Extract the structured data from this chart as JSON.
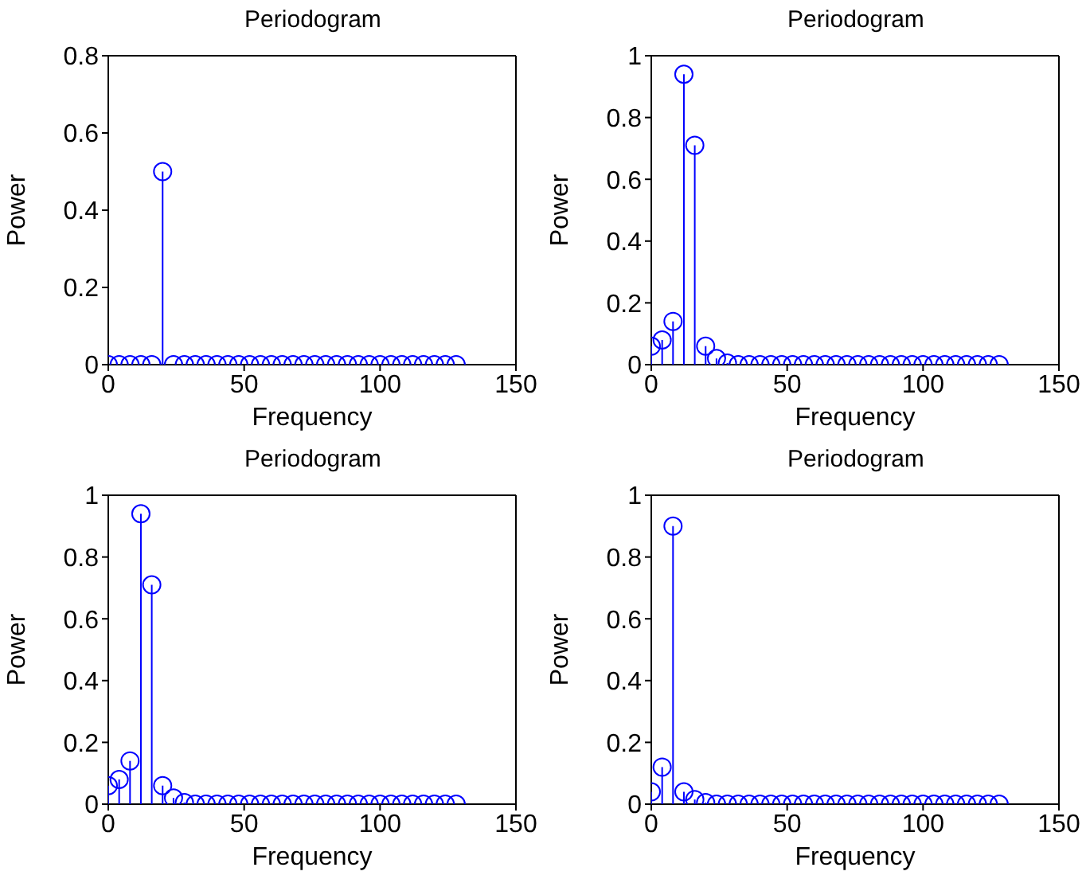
{
  "chart_data": [
    {
      "type": "lollipop",
      "title": "Periodogram",
      "xlabel": "Frequency",
      "ylabel": "Power",
      "x": [
        0,
        4,
        8,
        12,
        16,
        20,
        24,
        28,
        32,
        36,
        40,
        44,
        48,
        52,
        56,
        60,
        64,
        68,
        72,
        76,
        80,
        84,
        88,
        92,
        96,
        100,
        104,
        108,
        112,
        116,
        120,
        124,
        128
      ],
      "series": [
        {
          "color": "#0000ff",
          "values": [
            0,
            0,
            0,
            0,
            0,
            0.5,
            0,
            0,
            0,
            0,
            0,
            0,
            0,
            0,
            0,
            0,
            0,
            0,
            0,
            0,
            0,
            0,
            0,
            0,
            0,
            0,
            0,
            0,
            0,
            0,
            0,
            0,
            0
          ]
        }
      ],
      "xlim": [
        0,
        150
      ],
      "xticks": [
        0,
        50,
        100,
        150
      ],
      "ylim": [
        0,
        0.8
      ],
      "yticks": [
        0,
        0.2,
        0.4,
        0.6,
        0.8
      ],
      "grid": false,
      "marker": "circle"
    },
    {
      "type": "lollipop",
      "title": "Periodogram",
      "xlabel": "Frequency",
      "ylabel": "Power",
      "x": [
        0,
        4,
        8,
        12,
        16,
        20,
        24,
        28,
        32,
        36,
        40,
        44,
        48,
        52,
        56,
        60,
        64,
        68,
        72,
        76,
        80,
        84,
        88,
        92,
        96,
        100,
        104,
        108,
        112,
        116,
        120,
        124,
        128
      ],
      "series": [
        {
          "color": "#0000ff",
          "values": [
            0.06,
            0.08,
            0.14,
            0.94,
            0.71,
            0.06,
            0.02,
            0.005,
            0,
            0,
            0,
            0,
            0,
            0,
            0,
            0,
            0,
            0,
            0,
            0,
            0,
            0,
            0,
            0,
            0,
            0,
            0,
            0,
            0,
            0,
            0,
            0,
            0
          ]
        }
      ],
      "xlim": [
        0,
        150
      ],
      "xticks": [
        0,
        50,
        100,
        150
      ],
      "ylim": [
        0,
        1
      ],
      "yticks": [
        0,
        0.2,
        0.4,
        0.6,
        0.8,
        1
      ],
      "grid": false,
      "marker": "circle"
    },
    {
      "type": "lollipop",
      "title": "Periodogram",
      "xlabel": "Frequency",
      "ylabel": "Power",
      "x": [
        0,
        4,
        8,
        12,
        16,
        20,
        24,
        28,
        32,
        36,
        40,
        44,
        48,
        52,
        56,
        60,
        64,
        68,
        72,
        76,
        80,
        84,
        88,
        92,
        96,
        100,
        104,
        108,
        112,
        116,
        120,
        124,
        128
      ],
      "series": [
        {
          "color": "#0000ff",
          "values": [
            0.06,
            0.08,
            0.14,
            0.94,
            0.71,
            0.06,
            0.02,
            0.005,
            0,
            0,
            0,
            0,
            0,
            0,
            0,
            0,
            0,
            0,
            0,
            0,
            0,
            0,
            0,
            0,
            0,
            0,
            0,
            0,
            0,
            0,
            0,
            0,
            0
          ]
        }
      ],
      "xlim": [
        0,
        150
      ],
      "xticks": [
        0,
        50,
        100,
        150
      ],
      "ylim": [
        0,
        1
      ],
      "yticks": [
        0,
        0.2,
        0.4,
        0.6,
        0.8,
        1
      ],
      "grid": false,
      "marker": "circle"
    },
    {
      "type": "lollipop",
      "title": "Periodogram",
      "xlabel": "Frequency",
      "ylabel": "Power",
      "x": [
        0,
        4,
        8,
        12,
        16,
        20,
        24,
        28,
        32,
        36,
        40,
        44,
        48,
        52,
        56,
        60,
        64,
        68,
        72,
        76,
        80,
        84,
        88,
        92,
        96,
        100,
        104,
        108,
        112,
        116,
        120,
        124,
        128
      ],
      "series": [
        {
          "color": "#0000ff",
          "values": [
            0.04,
            0.12,
            0.9,
            0.04,
            0.015,
            0.005,
            0,
            0,
            0,
            0,
            0,
            0,
            0,
            0,
            0,
            0,
            0,
            0,
            0,
            0,
            0,
            0,
            0,
            0,
            0,
            0,
            0,
            0,
            0,
            0,
            0,
            0,
            0
          ]
        }
      ],
      "xlim": [
        0,
        150
      ],
      "xticks": [
        0,
        50,
        100,
        150
      ],
      "ylim": [
        0,
        1
      ],
      "yticks": [
        0,
        0.2,
        0.4,
        0.6,
        0.8,
        1
      ],
      "grid": false,
      "marker": "circle"
    }
  ]
}
